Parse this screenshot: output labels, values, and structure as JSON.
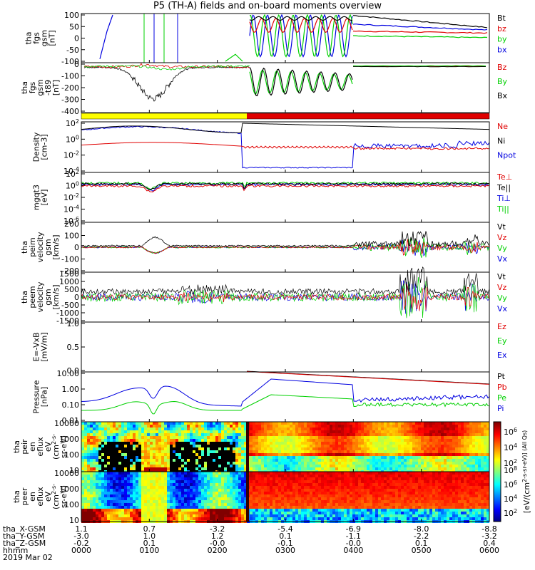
{
  "title": "P5 (TH-A) fields and on-board moments overview",
  "footer": {
    "row_labels": [
      "tha_X-GSM",
      "tha_Y-GSM",
      "tha_Z-GSM",
      "hhmm",
      "2019 Mar 02"
    ],
    "x_gsm": [
      "1.1",
      "0.7",
      "-3.2",
      "-5.4",
      "-6.9",
      "-8.0",
      "-8.8"
    ],
    "y_gsm": [
      "-3.0",
      "1.0",
      "1.2",
      "0.1",
      "-1.1",
      "-2.2",
      "-3.2"
    ],
    "z_gsm": [
      "-0.2",
      "0.1",
      "-0.0",
      "-0.1",
      "-0.0",
      "0.1",
      "0.4"
    ],
    "hhmm": [
      "0000",
      "0100",
      "0200",
      "0300",
      "0400",
      "0500",
      "0600"
    ]
  },
  "colors": {
    "black": "#000000",
    "red": "#e00000",
    "green": "#00d000",
    "blue": "#0000e0",
    "yellow": "#ffff00"
  },
  "colorbar": {
    "label": "[eV/(cm^2-s-sr-eV)] (All Qs)",
    "ticks": [
      "10^6",
      "10^4",
      "10^2"
    ],
    "ticks2": [
      "10^8",
      "10^6",
      "10^4",
      "10^2"
    ]
  },
  "chart_data": [
    {
      "type": "line",
      "ylabel": [
        "tha",
        "fgs",
        "gsm",
        "[nT]"
      ],
      "yticks": [
        "100",
        "50",
        "0",
        "-50",
        "-100"
      ],
      "ylim": [
        -100,
        100
      ],
      "legend": [
        {
          "name": "Bt",
          "color": "black"
        },
        {
          "name": "bz",
          "color": "red"
        },
        {
          "name": "by",
          "color": "green"
        },
        {
          "name": "bx",
          "color": "blue"
        }
      ]
    },
    {
      "type": "line",
      "ylabel": [
        "tha",
        "fgs",
        "gsm",
        "-t89",
        "[nT]"
      ],
      "yticks": [
        "0",
        "-100",
        "-200",
        "-300",
        "-400"
      ],
      "ylim": [
        -430,
        20
      ],
      "legend": [
        {
          "name": "Bz",
          "color": "red"
        },
        {
          "name": "By",
          "color": "green"
        },
        {
          "name": "Bx",
          "color": "black"
        }
      ]
    },
    {
      "type": "line",
      "ylabel": [
        "Density",
        "[cm-3]"
      ],
      "yticks": [
        "10^2",
        "10^0",
        "10^-2",
        "10^-4"
      ],
      "legend": [
        {
          "name": "Ne",
          "color": "red"
        },
        {
          "name": "Ni",
          "color": "black"
        },
        {
          "name": "Npot",
          "color": "blue"
        }
      ]
    },
    {
      "type": "line",
      "ylabel": [
        "mgqt3",
        "[eV]"
      ],
      "yticks": [
        "10^2",
        "10^0",
        "10^-2",
        "10^-4",
        "10^-6"
      ],
      "legend": [
        {
          "name": "Te⊥",
          "color": "red"
        },
        {
          "name": "Te||",
          "color": "black"
        },
        {
          "name": "Ti⊥",
          "color": "blue"
        },
        {
          "name": "Ti||",
          "color": "green"
        }
      ]
    },
    {
      "type": "line",
      "ylabel": [
        "tha",
        "peim",
        "velocity",
        "gsm",
        "[km/s]"
      ],
      "yticks": [
        "200",
        "100",
        "0",
        "-100",
        "-200"
      ],
      "ylim": [
        -200,
        200
      ],
      "legend": [
        {
          "name": "Vt",
          "color": "black"
        },
        {
          "name": "Vz",
          "color": "red"
        },
        {
          "name": "Vy",
          "color": "green"
        },
        {
          "name": "Vx",
          "color": "blue"
        }
      ]
    },
    {
      "type": "line",
      "ylabel": [
        "tha",
        "peem",
        "velocity",
        "gsm",
        "[km/s]"
      ],
      "yticks": [
        "1500",
        "1000",
        "500",
        "0",
        "-500",
        "-1000",
        "-1500"
      ],
      "ylim": [
        -1500,
        1500
      ],
      "legend": [
        {
          "name": "Vt",
          "color": "black"
        },
        {
          "name": "Vz",
          "color": "red"
        },
        {
          "name": "Vy",
          "color": "green"
        },
        {
          "name": "Vx",
          "color": "blue"
        }
      ]
    },
    {
      "type": "line",
      "ylabel": [
        "E=-VxB",
        "[mV/m]"
      ],
      "yticks": [
        "1.0",
        "0.5",
        "0.0"
      ],
      "ylim": [
        0,
        1
      ],
      "legend": [
        {
          "name": "Ez",
          "color": "red"
        },
        {
          "name": "Ey",
          "color": "green"
        },
        {
          "name": "Ex",
          "color": "blue"
        }
      ]
    },
    {
      "type": "line",
      "ylabel": [
        "Pressure",
        "[nPa]"
      ],
      "yticks": [
        "10.00",
        "1.00",
        "0.10",
        "0.01"
      ],
      "legend": [
        {
          "name": "Pt",
          "color": "black"
        },
        {
          "name": "Pb",
          "color": "red"
        },
        {
          "name": "Pe",
          "color": "green"
        },
        {
          "name": "Pi",
          "color": "blue"
        }
      ]
    },
    {
      "type": "heatmap",
      "ylabel": [
        "tha",
        "peir",
        "en",
        "eflux",
        "eV",
        "(cm^2-s-",
        "sr-eV)"
      ],
      "yticks": [
        "10000",
        "1000",
        "100",
        "10"
      ]
    },
    {
      "type": "heatmap",
      "ylabel": [
        "tha",
        "peer",
        "en",
        "eflux",
        "eV",
        "(cm^2-s-",
        "sr-eV)"
      ],
      "yticks": [
        "10000",
        "1000",
        "100",
        "10"
      ]
    }
  ]
}
